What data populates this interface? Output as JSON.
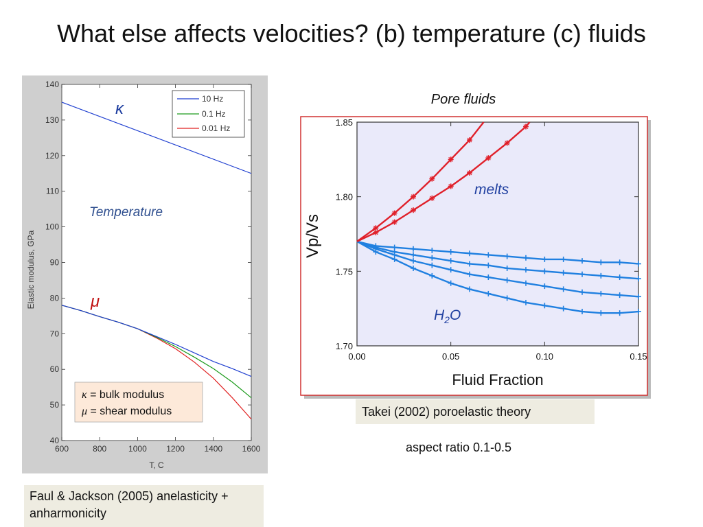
{
  "slide": {
    "title": "What else affects velocities?  (b) temperature (c) fluids",
    "pore_fluids_label": "Pore fluids",
    "left_caption": "Faul & Jackson (2005) anelasticity + anharmonicity",
    "right_caption": "Takei (2002) poroelastic theory",
    "aspect_text": "aspect ratio 0.1-0.5"
  },
  "chart_data": [
    {
      "type": "line",
      "xlabel": "T, C",
      "ylabel": "Elastic modulus, GPa",
      "xlim": [
        600,
        1600
      ],
      "ylim": [
        40,
        140
      ],
      "xticks": [
        "600",
        "800",
        "1000",
        "1200",
        "1400",
        "1600"
      ],
      "yticks": [
        "40",
        "50",
        "60",
        "70",
        "80",
        "90",
        "100",
        "110",
        "120",
        "130",
        "140"
      ],
      "legend_position": "top-right",
      "legend": [
        "10 Hz",
        "0.1 Hz",
        "0.01 Hz"
      ],
      "annotations": {
        "kappa": "κ",
        "mu": "μ",
        "temperature": "Temperature",
        "box_kappa_symbol": "κ",
        "box_kappa_text": " = bulk modulus",
        "box_mu_symbol": "μ",
        "box_mu_text": " = shear modulus"
      },
      "colors": {
        "10 Hz": "#1f3fd0",
        "0.1 Hz": "#1a9a1a",
        "0.01 Hz": "#e02020"
      },
      "kappa_series": {
        "name": "10 Hz",
        "x": [
          600,
          1600
        ],
        "y": [
          135,
          115
        ]
      },
      "mu_series": [
        {
          "name": "10 Hz",
          "x": [
            600,
            700,
            800,
            900,
            1000,
            1100,
            1200,
            1300,
            1400,
            1500,
            1600
          ],
          "y": [
            78,
            76.5,
            74.8,
            73.2,
            71.4,
            69.2,
            67,
            64.6,
            62.2,
            60.2,
            58
          ]
        },
        {
          "name": "0.1 Hz",
          "x": [
            600,
            700,
            800,
            900,
            1000,
            1100,
            1200,
            1300,
            1400,
            1500,
            1600
          ],
          "y": [
            78,
            76.5,
            74.8,
            73.2,
            71.4,
            69,
            66.4,
            63.4,
            60.2,
            56.4,
            52
          ]
        },
        {
          "name": "0.01 Hz",
          "x": [
            600,
            700,
            800,
            900,
            1000,
            1100,
            1200,
            1300,
            1400,
            1500,
            1600
          ],
          "y": [
            78,
            76.5,
            74.8,
            73.2,
            71.4,
            68.8,
            65.8,
            62,
            57.5,
            52,
            46
          ]
        }
      ]
    },
    {
      "type": "line",
      "xlabel": "Fluid Fraction",
      "ylabel": "Vp/Vs",
      "xlim": [
        0,
        0.15
      ],
      "ylim": [
        1.7,
        1.85
      ],
      "xticks": [
        "0.00",
        "0.05",
        "0.10",
        "0.15"
      ],
      "yticks": [
        "1.70",
        "1.75",
        "1.80",
        "1.85"
      ],
      "annotations": {
        "melts": "melts",
        "h2o_main": "H",
        "h2o_sub": "2",
        "h2o_end": "O"
      },
      "colors": {
        "melt": "#e0202a",
        "water": "#2080e0"
      },
      "melt_series": [
        {
          "x": [
            0,
            0.01,
            0.02,
            0.03,
            0.04,
            0.05,
            0.06,
            0.0675
          ],
          "y": [
            1.77,
            1.779,
            1.789,
            1.8,
            1.812,
            1.825,
            1.838,
            1.85
          ]
        },
        {
          "x": [
            0,
            0.01,
            0.02,
            0.03,
            0.04,
            0.05,
            0.06,
            0.07,
            0.08,
            0.09,
            0.092
          ],
          "y": [
            1.77,
            1.776,
            1.783,
            1.791,
            1.799,
            1.807,
            1.816,
            1.826,
            1.836,
            1.847,
            1.85
          ]
        }
      ],
      "water_series": [
        {
          "x": [
            0,
            0.01,
            0.02,
            0.03,
            0.04,
            0.05,
            0.06,
            0.07,
            0.08,
            0.09,
            0.1,
            0.11,
            0.12,
            0.13,
            0.14,
            0.15
          ],
          "y": [
            1.77,
            1.767,
            1.766,
            1.765,
            1.764,
            1.763,
            1.762,
            1.761,
            1.76,
            1.759,
            1.758,
            1.758,
            1.757,
            1.756,
            1.756,
            1.755
          ]
        },
        {
          "x": [
            0,
            0.01,
            0.02,
            0.03,
            0.04,
            0.05,
            0.06,
            0.07,
            0.08,
            0.09,
            0.1,
            0.11,
            0.12,
            0.13,
            0.14,
            0.15
          ],
          "y": [
            1.77,
            1.766,
            1.763,
            1.761,
            1.759,
            1.757,
            1.755,
            1.754,
            1.752,
            1.751,
            1.75,
            1.749,
            1.748,
            1.747,
            1.746,
            1.745
          ]
        },
        {
          "x": [
            0,
            0.01,
            0.02,
            0.03,
            0.04,
            0.05,
            0.06,
            0.07,
            0.08,
            0.09,
            0.1,
            0.11,
            0.12,
            0.13,
            0.14,
            0.15
          ],
          "y": [
            1.77,
            1.765,
            1.761,
            1.757,
            1.754,
            1.751,
            1.748,
            1.746,
            1.744,
            1.742,
            1.74,
            1.738,
            1.736,
            1.735,
            1.734,
            1.733
          ]
        },
        {
          "x": [
            0,
            0.01,
            0.02,
            0.03,
            0.04,
            0.05,
            0.06,
            0.07,
            0.08,
            0.09,
            0.1,
            0.11,
            0.12,
            0.13,
            0.14,
            0.15
          ],
          "y": [
            1.77,
            1.763,
            1.758,
            1.752,
            1.747,
            1.742,
            1.738,
            1.735,
            1.732,
            1.729,
            1.727,
            1.725,
            1.723,
            1.722,
            1.722,
            1.723
          ]
        }
      ]
    }
  ]
}
